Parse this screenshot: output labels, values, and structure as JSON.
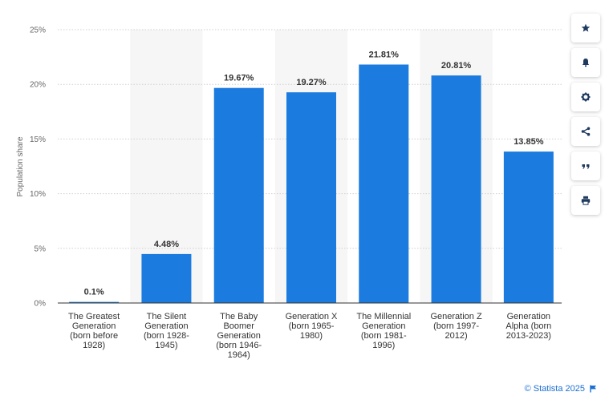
{
  "chart_data": {
    "type": "bar",
    "title": "",
    "xlabel": "",
    "ylabel": "Population share",
    "ylim": [
      0,
      25
    ],
    "yticks": [
      "0%",
      "5%",
      "10%",
      "15%",
      "20%",
      "25%"
    ],
    "ytick_values": [
      0,
      5,
      10,
      15,
      20,
      25
    ],
    "categories": [
      [
        "The Greatest",
        "Generation",
        "(born before",
        "1928)"
      ],
      [
        "The Silent",
        "Generation",
        "(born 1928-",
        "1945)"
      ],
      [
        "The Baby",
        "Boomer",
        "Generation",
        "(born 1946-",
        "1964)"
      ],
      [
        "Generation X",
        "(born 1965-",
        "1980)"
      ],
      [
        "The Millennial",
        "Generation",
        "(born 1981-",
        "1996)"
      ],
      [
        "Generation Z",
        "(born 1997-",
        "2012)"
      ],
      [
        "Generation",
        "Alpha (born",
        "2013-2023)"
      ]
    ],
    "values": [
      0.1,
      4.48,
      19.67,
      19.27,
      21.81,
      20.81,
      13.85
    ],
    "data_labels": [
      "0.1%",
      "4.48%",
      "19.67%",
      "19.27%",
      "21.81%",
      "20.81%",
      "13.85%"
    ],
    "bar_color": "#1b7bde",
    "grid": true
  },
  "sidebar": {
    "buttons": [
      {
        "name": "star-icon"
      },
      {
        "name": "bell-icon"
      },
      {
        "name": "gear-icon"
      },
      {
        "name": "share-icon"
      },
      {
        "name": "quote-icon"
      },
      {
        "name": "print-icon"
      }
    ]
  },
  "footer": {
    "credit": "© Statista 2025",
    "flag_icon": "flag-icon"
  }
}
